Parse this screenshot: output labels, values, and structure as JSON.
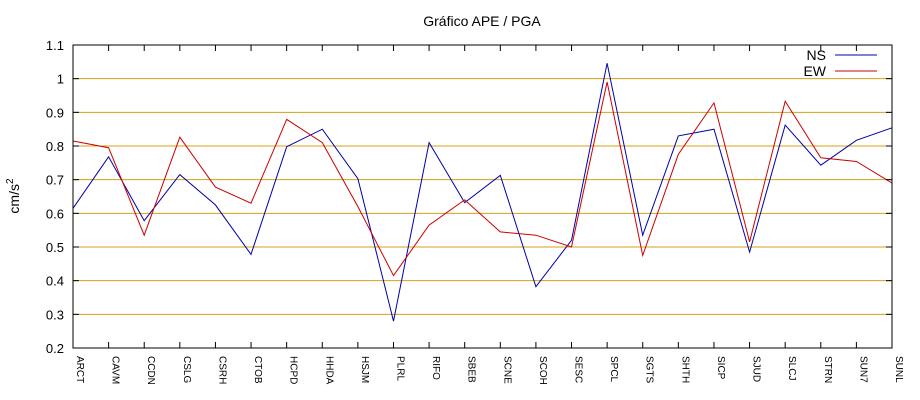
{
  "chart_data": {
    "type": "line",
    "title": "Gráfico  APE / PGA",
    "ylabel": "cm/s",
    "ylabel_sup": "2",
    "xlabel": "",
    "ylim": [
      0.2,
      1.1
    ],
    "yticks": [
      0.2,
      0.3,
      0.4,
      0.5,
      0.6,
      0.7,
      0.8,
      0.9,
      1,
      1.1
    ],
    "grid": "horizontal",
    "grid_color": "#d4a017",
    "legend_position": "top-right",
    "categories": [
      "ARCT",
      "CAVM",
      "CCDN",
      "CSLG",
      "CSRH",
      "CTOB",
      "HCPD",
      "HHDA",
      "HSJM",
      "PLRL",
      "RIFO",
      "SBEB",
      "SCNE",
      "SCOH",
      "SESC",
      "SPCL",
      "SGTS",
      "SHTH",
      "SICP",
      "SJUD",
      "SLCJ",
      "STRN",
      "SUN7",
      "SUNL"
    ],
    "series": [
      {
        "name": "NS",
        "color": "#0000aa",
        "values": [
          0.615,
          0.768,
          0.578,
          0.715,
          0.625,
          0.478,
          0.798,
          0.85,
          0.703,
          0.28,
          0.81,
          0.632,
          0.713,
          0.382,
          0.52,
          1.046,
          0.535,
          0.83,
          0.85,
          0.485,
          0.862,
          0.743,
          0.817,
          0.854
        ]
      },
      {
        "name": "EW",
        "color": "#cc0000",
        "values": [
          0.815,
          0.795,
          0.535,
          0.826,
          0.678,
          0.63,
          0.879,
          0.81,
          0.62,
          0.415,
          0.565,
          0.64,
          0.545,
          0.535,
          0.5,
          0.99,
          0.475,
          0.775,
          0.928,
          0.515,
          0.933,
          0.765,
          0.754,
          0.69
        ]
      }
    ]
  }
}
